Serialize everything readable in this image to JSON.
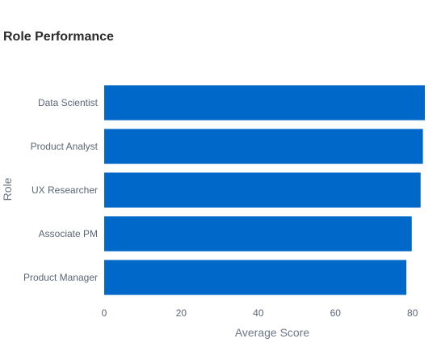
{
  "chart_data": {
    "type": "bar",
    "orientation": "horizontal",
    "title": "Role Performance",
    "xlabel": "Average Score",
    "ylabel": "Role",
    "categories": [
      "Data Scientist",
      "Product Analyst",
      "UX Researcher",
      "Associate PM",
      "Product Manager"
    ],
    "values": [
      83.2,
      82.7,
      82.1,
      79.8,
      78.4
    ],
    "xlim": [
      0,
      83.2
    ],
    "xticks": [
      0,
      20,
      40,
      60,
      80
    ],
    "grid": false,
    "legend": "none",
    "colors": {
      "bar": "#0068c9"
    }
  }
}
